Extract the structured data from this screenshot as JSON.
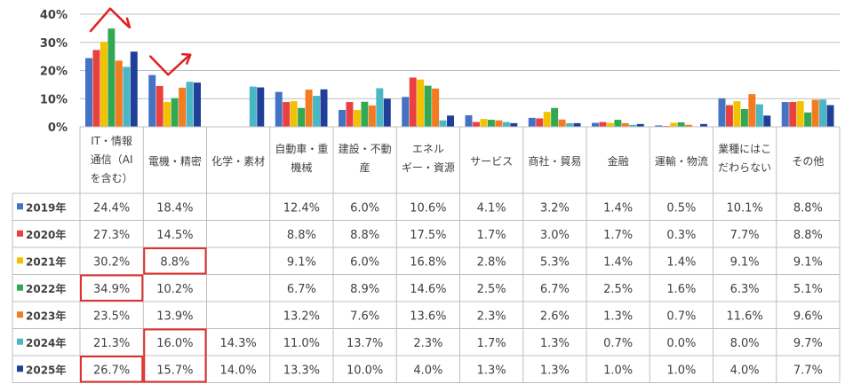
{
  "chart_data": {
    "type": "bar",
    "y_ticks": [
      "0%",
      "10%",
      "20%",
      "30%",
      "40%"
    ],
    "ylim": [
      0,
      40
    ],
    "categories": [
      [
        "IT・情報",
        "通信（AI",
        "を含む）"
      ],
      [
        "電機・精密"
      ],
      [
        "化学・素材"
      ],
      [
        "自動車・重",
        "機械"
      ],
      [
        "建設・不動",
        "産"
      ],
      [
        "エネル",
        "ギー・資源"
      ],
      [
        "サービス"
      ],
      [
        "商社・貿易"
      ],
      [
        "金融"
      ],
      [
        "運輸・物流"
      ],
      [
        "業種にはこ",
        "だわらない"
      ],
      [
        "その他"
      ]
    ],
    "series": [
      {
        "name": "2019年",
        "color": "#4472c4",
        "values": [
          24.4,
          18.4,
          null,
          12.4,
          6.0,
          10.6,
          4.1,
          3.2,
          1.4,
          0.5,
          10.1,
          8.8
        ],
        "labels": [
          "24.4%",
          "18.4%",
          "",
          "12.4%",
          "6.0%",
          "10.6%",
          "4.1%",
          "3.2%",
          "1.4%",
          "0.5%",
          "10.1%",
          "8.8%"
        ]
      },
      {
        "name": "2020年",
        "color": "#e94040",
        "values": [
          27.3,
          14.5,
          null,
          8.8,
          8.8,
          17.5,
          1.7,
          3.0,
          1.7,
          0.3,
          7.7,
          8.8
        ],
        "labels": [
          "27.3%",
          "14.5%",
          "",
          "8.8%",
          "8.8%",
          "17.5%",
          "1.7%",
          "3.0%",
          "1.7%",
          "0.3%",
          "7.7%",
          "8.8%"
        ]
      },
      {
        "name": "2021年",
        "color": "#f2c200",
        "values": [
          30.2,
          8.8,
          null,
          9.1,
          6.0,
          16.8,
          2.8,
          5.3,
          1.4,
          1.4,
          9.1,
          9.1
        ],
        "labels": [
          "30.2%",
          "8.8%",
          "",
          "9.1%",
          "6.0%",
          "16.8%",
          "2.8%",
          "5.3%",
          "1.4%",
          "1.4%",
          "9.1%",
          "9.1%"
        ]
      },
      {
        "name": "2022年",
        "color": "#33a854",
        "values": [
          34.9,
          10.2,
          null,
          6.7,
          8.9,
          14.6,
          2.5,
          6.7,
          2.5,
          1.6,
          6.3,
          5.1
        ],
        "labels": [
          "34.9%",
          "10.2%",
          "",
          "6.7%",
          "8.9%",
          "14.6%",
          "2.5%",
          "6.7%",
          "2.5%",
          "1.6%",
          "6.3%",
          "5.1%"
        ]
      },
      {
        "name": "2023年",
        "color": "#f47b20",
        "values": [
          23.5,
          13.9,
          null,
          13.2,
          7.6,
          13.6,
          2.3,
          2.6,
          1.3,
          0.7,
          11.6,
          9.6
        ],
        "labels": [
          "23.5%",
          "13.9%",
          "",
          "13.2%",
          "7.6%",
          "13.6%",
          "2.3%",
          "2.6%",
          "1.3%",
          "0.7%",
          "11.6%",
          "9.6%"
        ]
      },
      {
        "name": "2024年",
        "color": "#4ab7c4",
        "values": [
          21.3,
          16.0,
          14.3,
          11.0,
          13.7,
          2.3,
          1.7,
          1.3,
          0.7,
          0.0,
          8.0,
          9.7
        ],
        "labels": [
          "21.3%",
          "16.0%",
          "14.3%",
          "11.0%",
          "13.7%",
          "2.3%",
          "1.7%",
          "1.3%",
          "0.7%",
          "0.0%",
          "8.0%",
          "9.7%"
        ]
      },
      {
        "name": "2025年",
        "color": "#1f3f99",
        "values": [
          26.7,
          15.7,
          14.0,
          13.3,
          10.0,
          4.0,
          1.3,
          1.3,
          1.0,
          1.0,
          4.0,
          7.7
        ],
        "labels": [
          "26.7%",
          "15.7%",
          "14.0%",
          "13.3%",
          "10.0%",
          "4.0%",
          "1.3%",
          "1.3%",
          "1.0%",
          "1.0%",
          "4.0%",
          "7.7%"
        ]
      }
    ],
    "highlighted_cells": [
      {
        "series": 2,
        "category": 1
      },
      {
        "series": 3,
        "category": 0
      },
      {
        "series": 5,
        "category": 1
      },
      {
        "series": 6,
        "category": 1
      },
      {
        "series": 6,
        "category": 0
      }
    ],
    "annotations": [
      {
        "type": "arrow-up-down",
        "category": 0,
        "color": "#e02020"
      },
      {
        "type": "arrow-down-up",
        "category": 1,
        "color": "#e02020"
      }
    ],
    "grid": true,
    "legend": "table-rows"
  }
}
